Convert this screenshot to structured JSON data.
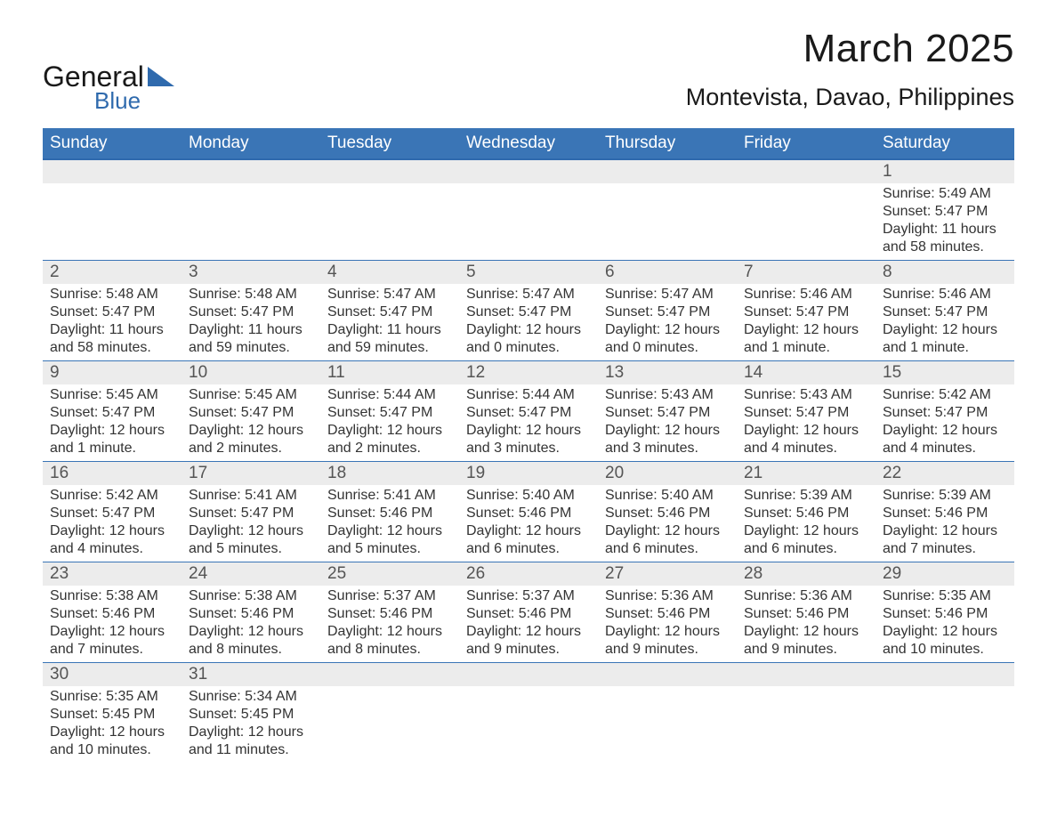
{
  "logo": {
    "text_general": "General",
    "text_blue": "Blue",
    "triangle_color": "#2f6aad"
  },
  "title": "March 2025",
  "location": "Montevista, Davao, Philippines",
  "colors": {
    "header_bg": "#3a75b6",
    "header_text": "#ffffff",
    "daynum_bg": "#ececec",
    "row_divider": "#3a75b6",
    "body_text": "#333333",
    "page_bg": "#ffffff"
  },
  "days_of_week": [
    "Sunday",
    "Monday",
    "Tuesday",
    "Wednesday",
    "Thursday",
    "Friday",
    "Saturday"
  ],
  "weeks": [
    [
      null,
      null,
      null,
      null,
      null,
      null,
      {
        "n": "1",
        "sr": "Sunrise: 5:49 AM",
        "ss": "Sunset: 5:47 PM",
        "dl": "Daylight: 11 hours and 58 minutes."
      }
    ],
    [
      {
        "n": "2",
        "sr": "Sunrise: 5:48 AM",
        "ss": "Sunset: 5:47 PM",
        "dl": "Daylight: 11 hours and 58 minutes."
      },
      {
        "n": "3",
        "sr": "Sunrise: 5:48 AM",
        "ss": "Sunset: 5:47 PM",
        "dl": "Daylight: 11 hours and 59 minutes."
      },
      {
        "n": "4",
        "sr": "Sunrise: 5:47 AM",
        "ss": "Sunset: 5:47 PM",
        "dl": "Daylight: 11 hours and 59 minutes."
      },
      {
        "n": "5",
        "sr": "Sunrise: 5:47 AM",
        "ss": "Sunset: 5:47 PM",
        "dl": "Daylight: 12 hours and 0 minutes."
      },
      {
        "n": "6",
        "sr": "Sunrise: 5:47 AM",
        "ss": "Sunset: 5:47 PM",
        "dl": "Daylight: 12 hours and 0 minutes."
      },
      {
        "n": "7",
        "sr": "Sunrise: 5:46 AM",
        "ss": "Sunset: 5:47 PM",
        "dl": "Daylight: 12 hours and 1 minute."
      },
      {
        "n": "8",
        "sr": "Sunrise: 5:46 AM",
        "ss": "Sunset: 5:47 PM",
        "dl": "Daylight: 12 hours and 1 minute."
      }
    ],
    [
      {
        "n": "9",
        "sr": "Sunrise: 5:45 AM",
        "ss": "Sunset: 5:47 PM",
        "dl": "Daylight: 12 hours and 1 minute."
      },
      {
        "n": "10",
        "sr": "Sunrise: 5:45 AM",
        "ss": "Sunset: 5:47 PM",
        "dl": "Daylight: 12 hours and 2 minutes."
      },
      {
        "n": "11",
        "sr": "Sunrise: 5:44 AM",
        "ss": "Sunset: 5:47 PM",
        "dl": "Daylight: 12 hours and 2 minutes."
      },
      {
        "n": "12",
        "sr": "Sunrise: 5:44 AM",
        "ss": "Sunset: 5:47 PM",
        "dl": "Daylight: 12 hours and 3 minutes."
      },
      {
        "n": "13",
        "sr": "Sunrise: 5:43 AM",
        "ss": "Sunset: 5:47 PM",
        "dl": "Daylight: 12 hours and 3 minutes."
      },
      {
        "n": "14",
        "sr": "Sunrise: 5:43 AM",
        "ss": "Sunset: 5:47 PM",
        "dl": "Daylight: 12 hours and 4 minutes."
      },
      {
        "n": "15",
        "sr": "Sunrise: 5:42 AM",
        "ss": "Sunset: 5:47 PM",
        "dl": "Daylight: 12 hours and 4 minutes."
      }
    ],
    [
      {
        "n": "16",
        "sr": "Sunrise: 5:42 AM",
        "ss": "Sunset: 5:47 PM",
        "dl": "Daylight: 12 hours and 4 minutes."
      },
      {
        "n": "17",
        "sr": "Sunrise: 5:41 AM",
        "ss": "Sunset: 5:47 PM",
        "dl": "Daylight: 12 hours and 5 minutes."
      },
      {
        "n": "18",
        "sr": "Sunrise: 5:41 AM",
        "ss": "Sunset: 5:46 PM",
        "dl": "Daylight: 12 hours and 5 minutes."
      },
      {
        "n": "19",
        "sr": "Sunrise: 5:40 AM",
        "ss": "Sunset: 5:46 PM",
        "dl": "Daylight: 12 hours and 6 minutes."
      },
      {
        "n": "20",
        "sr": "Sunrise: 5:40 AM",
        "ss": "Sunset: 5:46 PM",
        "dl": "Daylight: 12 hours and 6 minutes."
      },
      {
        "n": "21",
        "sr": "Sunrise: 5:39 AM",
        "ss": "Sunset: 5:46 PM",
        "dl": "Daylight: 12 hours and 6 minutes."
      },
      {
        "n": "22",
        "sr": "Sunrise: 5:39 AM",
        "ss": "Sunset: 5:46 PM",
        "dl": "Daylight: 12 hours and 7 minutes."
      }
    ],
    [
      {
        "n": "23",
        "sr": "Sunrise: 5:38 AM",
        "ss": "Sunset: 5:46 PM",
        "dl": "Daylight: 12 hours and 7 minutes."
      },
      {
        "n": "24",
        "sr": "Sunrise: 5:38 AM",
        "ss": "Sunset: 5:46 PM",
        "dl": "Daylight: 12 hours and 8 minutes."
      },
      {
        "n": "25",
        "sr": "Sunrise: 5:37 AM",
        "ss": "Sunset: 5:46 PM",
        "dl": "Daylight: 12 hours and 8 minutes."
      },
      {
        "n": "26",
        "sr": "Sunrise: 5:37 AM",
        "ss": "Sunset: 5:46 PM",
        "dl": "Daylight: 12 hours and 9 minutes."
      },
      {
        "n": "27",
        "sr": "Sunrise: 5:36 AM",
        "ss": "Sunset: 5:46 PM",
        "dl": "Daylight: 12 hours and 9 minutes."
      },
      {
        "n": "28",
        "sr": "Sunrise: 5:36 AM",
        "ss": "Sunset: 5:46 PM",
        "dl": "Daylight: 12 hours and 9 minutes."
      },
      {
        "n": "29",
        "sr": "Sunrise: 5:35 AM",
        "ss": "Sunset: 5:46 PM",
        "dl": "Daylight: 12 hours and 10 minutes."
      }
    ],
    [
      {
        "n": "30",
        "sr": "Sunrise: 5:35 AM",
        "ss": "Sunset: 5:45 PM",
        "dl": "Daylight: 12 hours and 10 minutes."
      },
      {
        "n": "31",
        "sr": "Sunrise: 5:34 AM",
        "ss": "Sunset: 5:45 PM",
        "dl": "Daylight: 12 hours and 11 minutes."
      },
      null,
      null,
      null,
      null,
      null
    ]
  ]
}
